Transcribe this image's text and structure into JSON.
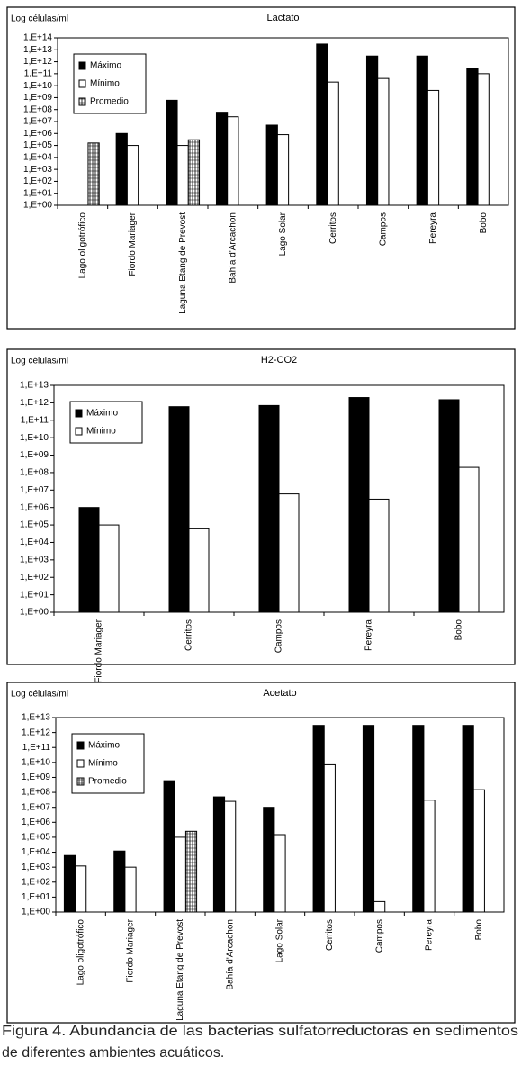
{
  "chart_data": [
    {
      "type": "bar",
      "title": "Lactato",
      "ylabel": "Log células/ml",
      "yscale": "log",
      "legend": "upper-left",
      "categories": [
        "Lago oligotrófico",
        "Fiordo Mariager",
        "Laguna Etang de Prevost",
        "Bahía d'Arcachon",
        "Lago Solar",
        "Cerritos",
        "Campos",
        "Pereyra",
        "Bobo"
      ],
      "series": [
        {
          "name": "Máximo",
          "color": "#000000",
          "values": [
            null,
            1000000,
            600000000,
            60000000,
            5000000,
            30000000000000,
            3000000000000,
            3000000000000,
            300000000000
          ]
        },
        {
          "name": "Mínimo",
          "color": "#ffffff",
          "values": [
            null,
            100000,
            100000,
            25000000,
            800000,
            20000000000,
            40000000000,
            4000000000,
            100000000000
          ]
        },
        {
          "name": "Promedio",
          "color": "#ffffff",
          "pattern": "hatch",
          "values": [
            160000,
            null,
            300000,
            null,
            null,
            null,
            null,
            null,
            null
          ]
        }
      ],
      "ylim": [
        1,
        100000000000000
      ],
      "yticks": [
        {
          "value": 1,
          "label": "1,E+00"
        },
        {
          "value": 10,
          "label": "1,E+01"
        },
        {
          "value": 100,
          "label": "1,E+02"
        },
        {
          "value": 1000,
          "label": "1,E+03"
        },
        {
          "value": 10000,
          "label": "1,E+04"
        },
        {
          "value": 100000,
          "label": "1,E+05"
        },
        {
          "value": 1000000,
          "label": "1,E+06"
        },
        {
          "value": 10000000,
          "label": "1,E+07"
        },
        {
          "value": 100000000,
          "label": "1,E+08"
        },
        {
          "value": 1000000000,
          "label": "1,E+09"
        },
        {
          "value": 10000000000,
          "label": "1,E+10"
        },
        {
          "value": 100000000000,
          "label": "1,E+11"
        },
        {
          "value": 1000000000000,
          "label": "1,E+12"
        },
        {
          "value": 10000000000000,
          "label": "1,E+13"
        },
        {
          "value": 100000000000000,
          "label": "1,E+14"
        }
      ]
    },
    {
      "type": "bar",
      "title": "H2-CO2",
      "ylabel": "Log células/ml",
      "yscale": "log",
      "legend": "upper-left",
      "categories": [
        "Fiordo Mariager",
        "Cerritos",
        "Campos",
        "Pereyra",
        "Bobo"
      ],
      "series": [
        {
          "name": "Máximo",
          "color": "#000000",
          "values": [
            1000000,
            600000000000,
            700000000000,
            2000000000000,
            1500000000000
          ]
        },
        {
          "name": "Mínimo",
          "color": "#ffffff",
          "values": [
            100000,
            60000,
            6000000,
            3000000,
            200000000
          ]
        }
      ],
      "ylim": [
        1,
        10000000000000
      ],
      "yticks": [
        {
          "value": 1,
          "label": "1,E+00"
        },
        {
          "value": 10,
          "label": "1,E+01"
        },
        {
          "value": 100,
          "label": "1,E+02"
        },
        {
          "value": 1000,
          "label": "1,E+03"
        },
        {
          "value": 10000,
          "label": "1,E+04"
        },
        {
          "value": 100000,
          "label": "1,E+05"
        },
        {
          "value": 1000000,
          "label": "1,E+06"
        },
        {
          "value": 10000000,
          "label": "1,E+07"
        },
        {
          "value": 100000000,
          "label": "1,E+08"
        },
        {
          "value": 1000000000,
          "label": "1,E+09"
        },
        {
          "value": 10000000000,
          "label": "1,E+10"
        },
        {
          "value": 100000000000,
          "label": "1,E+11"
        },
        {
          "value": 1000000000000,
          "label": "1,E+12"
        },
        {
          "value": 10000000000000,
          "label": "1,E+13"
        }
      ]
    },
    {
      "type": "bar",
      "title": "Acetato",
      "ylabel": "Log células/ml",
      "yscale": "log",
      "legend": "upper-left",
      "categories": [
        "Lago oligotrófico",
        "Fiordo Mariager",
        "Laguna Etang de Prevost",
        "Bahía d'Arcachon",
        "Lago Solar",
        "Cerritos",
        "Campos",
        "Pereyra",
        "Bobo"
      ],
      "series": [
        {
          "name": "Máximo",
          "color": "#000000",
          "values": [
            6000,
            12000,
            600000000,
            50000000,
            10000000,
            3000000000000,
            3000000000000,
            3000000000000,
            3000000000000
          ]
        },
        {
          "name": "Mínimo",
          "color": "#ffffff",
          "values": [
            1200,
            1000,
            100000,
            25000000,
            150000,
            7000000000,
            5,
            30000000,
            150000000
          ]
        },
        {
          "name": "Promedio",
          "color": "#ffffff",
          "pattern": "hatch",
          "values": [
            null,
            null,
            250000,
            null,
            null,
            null,
            null,
            null,
            null
          ]
        }
      ],
      "ylim": [
        1,
        10000000000000
      ],
      "yticks": [
        {
          "value": 1,
          "label": "1,E+00"
        },
        {
          "value": 10,
          "label": "1,E+01"
        },
        {
          "value": 100,
          "label": "1,E+02"
        },
        {
          "value": 1000,
          "label": "1,E+03"
        },
        {
          "value": 10000,
          "label": "1,E+04"
        },
        {
          "value": 100000,
          "label": "1,E+05"
        },
        {
          "value": 1000000,
          "label": "1,E+06"
        },
        {
          "value": 10000000,
          "label": "1,E+07"
        },
        {
          "value": 100000000,
          "label": "1,E+08"
        },
        {
          "value": 1000000000,
          "label": "1,E+09"
        },
        {
          "value": 10000000000,
          "label": "1,E+10"
        },
        {
          "value": 100000000000,
          "label": "1,E+11"
        },
        {
          "value": 1000000000000,
          "label": "1,E+12"
        },
        {
          "value": 10000000000000,
          "label": "1,E+13"
        }
      ]
    }
  ],
  "caption": [
    "Figura 4. Abundancia de las bacterias sulfatorreductoras en sedimentos",
    "de diferentes ambientes acuáticos."
  ]
}
